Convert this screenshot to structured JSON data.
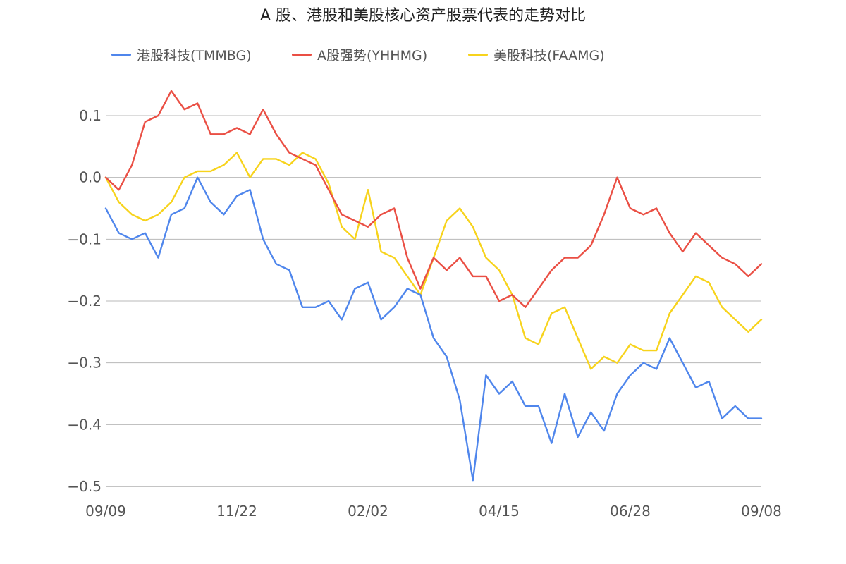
{
  "chart_data": {
    "type": "line",
    "title": "A 股、港股和美股核心资产股票代表的走势对比",
    "xlabel": "",
    "ylabel": "",
    "x_tick_labels": [
      "09/09",
      "11/22",
      "02/02",
      "04/15",
      "06/28",
      "09/08"
    ],
    "ylim": [
      -0.5,
      0.14
    ],
    "y_ticks": [
      0.1,
      0.0,
      -0.1,
      -0.2,
      -0.3,
      -0.4,
      -0.5
    ],
    "y_tick_labels": [
      "0.1",
      "0.0",
      "−0.1",
      "−0.2",
      "−0.3",
      "−0.4",
      "−0.5"
    ],
    "grid": "horizontal",
    "legend_position": "top",
    "x": [
      0,
      1,
      2,
      3,
      4,
      5,
      6,
      7,
      8,
      9,
      10,
      11,
      12,
      13,
      14,
      15,
      16,
      17,
      18,
      19,
      20,
      21,
      22,
      23,
      24,
      25,
      26,
      27,
      28,
      29,
      30,
      31,
      32,
      33,
      34,
      35,
      36,
      37,
      38,
      39,
      40,
      41,
      42,
      43,
      44,
      45,
      46,
      47,
      48,
      49,
      50
    ],
    "series": [
      {
        "name": "港股科技(TMMBG)",
        "color": "#4f86ec",
        "values": [
          -0.05,
          -0.09,
          -0.1,
          -0.09,
          -0.13,
          -0.06,
          -0.05,
          0.0,
          -0.04,
          -0.06,
          -0.03,
          -0.02,
          -0.1,
          -0.14,
          -0.15,
          -0.21,
          -0.21,
          -0.2,
          -0.23,
          -0.18,
          -0.17,
          -0.23,
          -0.21,
          -0.18,
          -0.19,
          -0.26,
          -0.29,
          -0.36,
          -0.49,
          -0.32,
          -0.35,
          -0.33,
          -0.37,
          -0.37,
          -0.43,
          -0.35,
          -0.42,
          -0.38,
          -0.41,
          -0.35,
          -0.32,
          -0.3,
          -0.31,
          -0.26,
          -0.3,
          -0.34,
          -0.33,
          -0.39,
          -0.37,
          -0.39,
          -0.39
        ]
      },
      {
        "name": "A股强势(YHHMG)",
        "color": "#ea4f44",
        "values": [
          0.0,
          -0.02,
          0.02,
          0.09,
          0.1,
          0.14,
          0.11,
          0.12,
          0.07,
          0.07,
          0.08,
          0.07,
          0.11,
          0.07,
          0.04,
          0.03,
          0.02,
          -0.02,
          -0.06,
          -0.07,
          -0.08,
          -0.06,
          -0.05,
          -0.13,
          -0.18,
          -0.13,
          -0.15,
          -0.13,
          -0.16,
          -0.16,
          -0.2,
          -0.19,
          -0.21,
          -0.18,
          -0.15,
          -0.13,
          -0.13,
          -0.11,
          -0.06,
          0.0,
          -0.05,
          -0.06,
          -0.05,
          -0.09,
          -0.12,
          -0.09,
          -0.11,
          -0.13,
          -0.14,
          -0.16,
          -0.14
        ]
      },
      {
        "name": "美股科技(FAAMG)",
        "color": "#f7d31c",
        "values": [
          0.0,
          -0.04,
          -0.06,
          -0.07,
          -0.06,
          -0.04,
          0.0,
          0.01,
          0.01,
          0.02,
          0.04,
          0.0,
          0.03,
          0.03,
          0.02,
          0.04,
          0.03,
          -0.01,
          -0.08,
          -0.1,
          -0.02,
          -0.12,
          -0.13,
          -0.16,
          -0.19,
          -0.13,
          -0.07,
          -0.05,
          -0.08,
          -0.13,
          -0.15,
          -0.19,
          -0.26,
          -0.27,
          -0.22,
          -0.21,
          -0.26,
          -0.31,
          -0.29,
          -0.3,
          -0.27,
          -0.28,
          -0.28,
          -0.22,
          -0.19,
          -0.16,
          -0.17,
          -0.21,
          -0.23,
          -0.25,
          -0.23
        ]
      }
    ]
  }
}
